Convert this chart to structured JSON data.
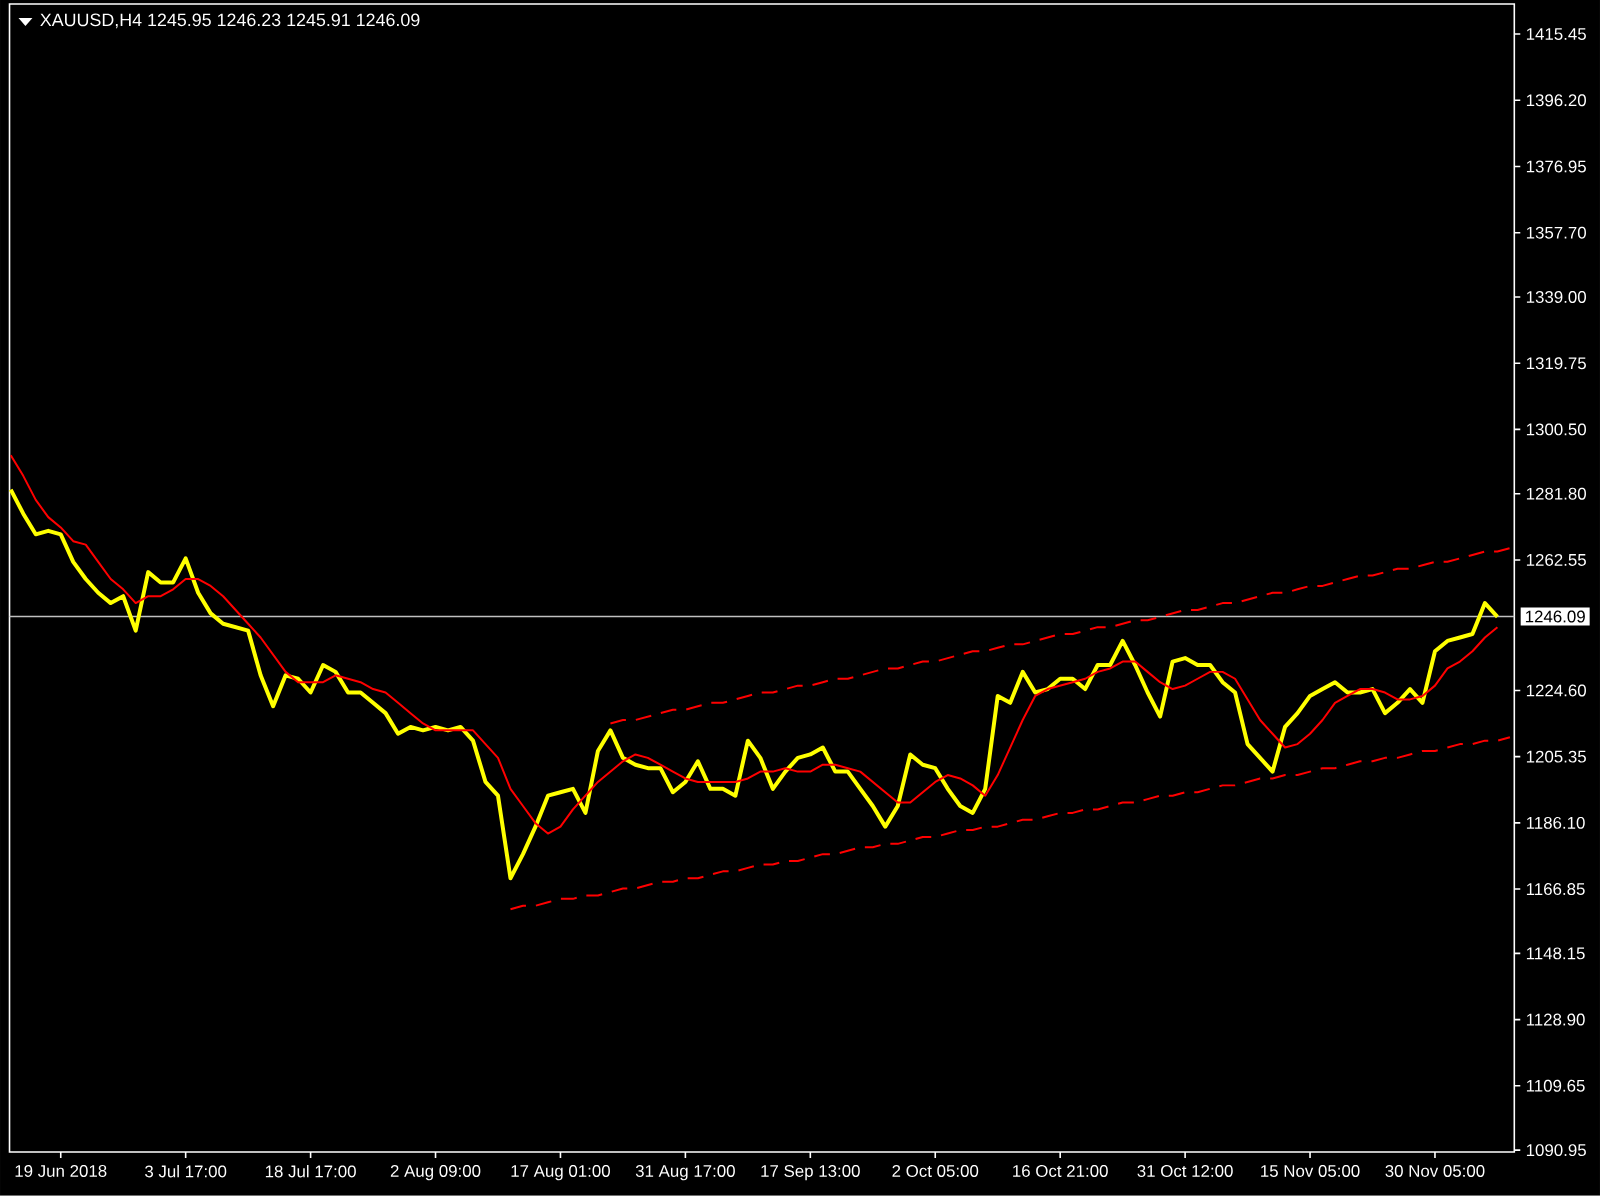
{
  "chart_data": {
    "type": "line",
    "title": "XAUUSD,H4 1245.95 1246.23 1245.91 1246.09",
    "categories": [
      null,
      null,
      null,
      null,
      "19 Jun 2018",
      null,
      null,
      null,
      null,
      null,
      null,
      null,
      null,
      null,
      "3 Jul 17:00",
      null,
      null,
      null,
      null,
      null,
      null,
      null,
      null,
      null,
      "18 Jul 17:00",
      null,
      null,
      null,
      null,
      null,
      null,
      null,
      null,
      null,
      "2 Aug 09:00",
      null,
      null,
      null,
      null,
      null,
      null,
      null,
      null,
      null,
      "17 Aug 01:00",
      null,
      null,
      null,
      null,
      null,
      null,
      null,
      null,
      null,
      "31 Aug 17:00",
      null,
      null,
      null,
      null,
      null,
      null,
      null,
      null,
      null,
      "17 Sep 13:00",
      null,
      null,
      null,
      null,
      null,
      null,
      null,
      null,
      null,
      "2 Oct 05:00",
      null,
      null,
      null,
      null,
      null,
      null,
      null,
      null,
      null,
      "16 Oct 21:00",
      null,
      null,
      null,
      null,
      null,
      null,
      null,
      null,
      null,
      "31 Oct 12:00",
      null,
      null,
      null,
      null,
      null,
      null,
      null,
      null,
      null,
      "15 Nov 05:00",
      null,
      null,
      null,
      null,
      null,
      null,
      null,
      null,
      null,
      "30 Nov 05:00",
      null,
      null,
      null,
      null,
      null,
      null
    ],
    "ylim": [
      1090.4,
      1424.2
    ],
    "yticks": [
      1090.95,
      1109.65,
      {
        "value": 1128.9,
        "label": "1128.90"
      },
      1148.15,
      1166.85,
      {
        "value": 1186.1,
        "label": "1186.10"
      },
      1205.35,
      {
        "value": 1224.6,
        "label": "1224.60"
      },
      1262.55,
      {
        "value": 1281.8,
        "label": "1281.80"
      },
      {
        "value": 1300.5,
        "label": "1300.50"
      },
      1319.75,
      {
        "value": 1339.0,
        "label": "1339.00"
      },
      {
        "value": 1357.7,
        "label": "1357.70"
      },
      1376.95,
      {
        "value": 1396.2,
        "label": "1396.20"
      },
      1415.45
    ],
    "series": [
      {
        "color": "#ffff00",
        "values": [
          1283,
          1276,
          1270,
          1271,
          1270,
          1262,
          1257,
          1253,
          1250,
          1252,
          1242,
          1259,
          1256,
          1256,
          1263,
          1253,
          1247,
          1244,
          1243,
          1242,
          1229,
          1220,
          1229,
          1228,
          1224,
          1232,
          1230,
          1224,
          1224,
          1221,
          1218,
          1212,
          1214,
          1213,
          1214,
          1213,
          1214,
          1210,
          1198,
          1194,
          1170,
          1177,
          1185,
          1194,
          1195,
          1196,
          1189,
          1207,
          1213,
          1205,
          1203,
          1202,
          1202,
          1195,
          1198,
          1204,
          1196,
          1196,
          1194,
          1210,
          1205,
          1196,
          1201,
          1205,
          1206,
          1208,
          1201,
          1201,
          1196,
          1191,
          1185,
          1191,
          1206,
          1203,
          1202,
          1196,
          1191,
          1189,
          1196,
          1223,
          1221,
          1230,
          1224,
          1225,
          1228,
          1228,
          1225,
          1232,
          1232,
          1239,
          1232,
          1224,
          1217,
          1233,
          1234,
          1232,
          1232,
          1227,
          1224,
          1209,
          1205,
          1201,
          1214,
          1218,
          1223,
          1225,
          1227,
          1224,
          1224,
          1225,
          1218,
          1221,
          1225,
          1221,
          1236,
          1239,
          1240,
          1241,
          1250,
          1246,
          null
        ]
      },
      {
        "color": "#ff0000",
        "values": [
          1293,
          1287,
          1280,
          1275,
          1272,
          1268,
          1267,
          1262,
          1257,
          1254,
          1250,
          1252,
          1252,
          1254,
          1257,
          1257,
          1255,
          1252,
          1248,
          1244,
          1240,
          1235,
          1230,
          1227,
          1227,
          1227,
          1229,
          1228,
          1227,
          1225,
          1224,
          1221,
          1218,
          1215,
          1213,
          1213,
          1213,
          1213,
          1209,
          1205,
          1196,
          1191,
          1186,
          1183,
          1185,
          1190,
          1194,
          1198,
          1201,
          1204,
          1206,
          1205,
          1203,
          1201,
          1199,
          1198,
          1198,
          1198,
          1198,
          1199,
          1201,
          1201,
          1202,
          1201,
          1201,
          1203,
          1203,
          1202,
          1201,
          1198,
          1195,
          1192,
          1192,
          1195,
          1198,
          1200,
          1199,
          1197,
          1194,
          1200,
          1208,
          1216,
          1223,
          1225,
          1226,
          1227,
          1228,
          1230,
          1231,
          1233,
          1233,
          1230,
          1227,
          1225,
          1226,
          1228,
          1230,
          1230,
          1228,
          1222,
          1216,
          1212,
          1208,
          1209,
          1212,
          1216,
          1221,
          1223,
          1225,
          1225,
          1224,
          1222,
          1222,
          1223,
          1226,
          1231,
          1233,
          1236,
          1240,
          1243,
          null
        ]
      },
      {
        "color": "#ff0000",
        "line_style": "dashed",
        "values": [
          null,
          null,
          null,
          null,
          null,
          null,
          null,
          null,
          null,
          null,
          null,
          null,
          null,
          null,
          null,
          null,
          null,
          null,
          null,
          null,
          null,
          null,
          null,
          null,
          null,
          null,
          null,
          null,
          null,
          null,
          null,
          null,
          null,
          null,
          null,
          null,
          null,
          null,
          null,
          null,
          1161,
          1162,
          1162,
          1163,
          1164,
          1164,
          1165,
          1165,
          1166,
          1167,
          1167,
          1168,
          1169,
          1169,
          1170,
          1170,
          1171,
          1172,
          1172,
          1173,
          1174,
          1174,
          1175,
          1175,
          1176,
          1177,
          1177,
          1178,
          1179,
          1179,
          1180,
          1180,
          1181,
          1182,
          1182,
          1183,
          1184,
          1184,
          1185,
          1185,
          1186,
          1187,
          1187,
          1188,
          1189,
          1189,
          1190,
          1190,
          1191,
          1192,
          1192,
          1193,
          1194,
          1194,
          1195,
          1195,
          1196,
          1197,
          1197,
          1198,
          1199,
          1199,
          1200,
          1200,
          1201,
          1202,
          1202,
          1203,
          1204,
          1204,
          1205,
          1205,
          1206,
          1207,
          1207,
          1208,
          1209,
          1209,
          1210,
          1210,
          1211
        ]
      },
      {
        "color": "#ff0000",
        "line_style": "dashed",
        "values": [
          null,
          null,
          null,
          null,
          null,
          null,
          null,
          null,
          null,
          null,
          null,
          null,
          null,
          null,
          null,
          null,
          null,
          null,
          null,
          null,
          null,
          null,
          null,
          null,
          null,
          null,
          null,
          null,
          null,
          null,
          null,
          null,
          null,
          null,
          null,
          null,
          null,
          null,
          null,
          null,
          null,
          null,
          null,
          null,
          null,
          null,
          null,
          null,
          1215,
          1216,
          1216,
          1217,
          1218,
          1219,
          1219,
          1220,
          1221,
          1221,
          1222,
          1223,
          1224,
          1224,
          1225,
          1226,
          1226,
          1227,
          1228,
          1228,
          1229,
          1230,
          1231,
          1231,
          1232,
          1233,
          1233,
          1234,
          1235,
          1236,
          1236,
          1237,
          1238,
          1238,
          1239,
          1240,
          1241,
          1241,
          1242,
          1243,
          1243,
          1244,
          1245,
          1245,
          1246,
          1247,
          1248,
          1248,
          1249,
          1250,
          1250,
          1251,
          1252,
          1253,
          1253,
          1254,
          1255,
          1255,
          1256,
          1257,
          1258,
          1258,
          1259,
          1260,
          1260,
          1261,
          1262,
          1262,
          1263,
          1264,
          1265,
          1265,
          1266
        ]
      }
    ],
    "ref_lines": [
      {
        "axis": "y",
        "value": 1246.09,
        "label": "1246.09",
        "color": "#c0c0c0"
      }
    ]
  }
}
